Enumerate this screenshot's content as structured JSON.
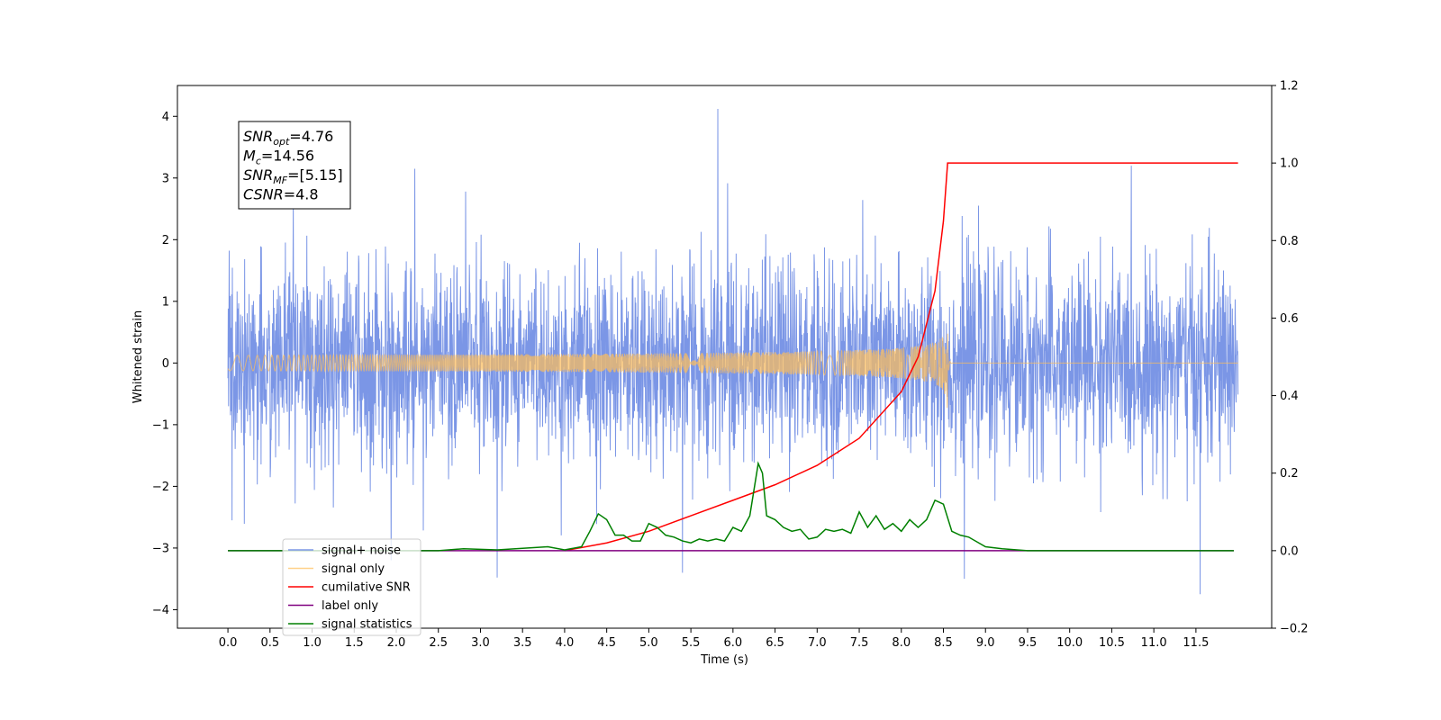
{
  "chart_data": {
    "type": "line",
    "xlabel": "Time (s)",
    "ylabel": "Whitened strain",
    "xlim": [
      -0.6,
      12.4
    ],
    "ylim": [
      -4.3,
      4.5
    ],
    "ylim_right": [
      -0.2,
      1.2
    ],
    "x_ticks": [
      "0.0",
      "0.5",
      "1.0",
      "1.5",
      "2.0",
      "2.5",
      "3.0",
      "3.5",
      "4.0",
      "4.5",
      "5.0",
      "5.5",
      "6.0",
      "6.5",
      "7.0",
      "7.5",
      "8.0",
      "8.5",
      "9.0",
      "9.5",
      "10.0",
      "10.5",
      "11.0",
      "11.5"
    ],
    "y_ticks_left": [
      "−4",
      "−3",
      "−2",
      "−1",
      "0",
      "1",
      "2",
      "3",
      "4"
    ],
    "y_ticks_right": [
      "−0.2",
      "0.0",
      "0.2",
      "0.4",
      "0.6",
      "0.8",
      "1.0",
      "1.2"
    ],
    "grid": false,
    "legend_position": "lower-left",
    "annotation": {
      "lines": [
        {
          "var": "SNR",
          "sub": "opt",
          "value": "=4.76"
        },
        {
          "var": "M",
          "sub": "c",
          "value": "=14.56"
        },
        {
          "var": "SNR",
          "sub": "MF",
          "value": "=[5.15]"
        },
        {
          "var": "CSNR",
          "sub": "",
          "value": "=4.8"
        }
      ]
    },
    "series": [
      {
        "name": "signal+ noise",
        "axis": "left",
        "color": "#7b96e6",
        "style": "noise",
        "x_range": [
          0.0,
          12.0
        ],
        "amplitude_std": 0.8,
        "notable_peaks": [
          [
            5.82,
            4.12
          ],
          [
            11.55,
            -3.75
          ],
          [
            3.2,
            -3.48
          ],
          [
            8.75,
            -3.5
          ],
          [
            5.4,
            -3.4
          ],
          [
            0.05,
            -2.55
          ],
          [
            2.22,
            3.15
          ]
        ]
      },
      {
        "name": "signal only",
        "axis": "left",
        "color": "#ffbd58",
        "style": "chirp",
        "x_range": [
          0.0,
          12.0
        ],
        "merger_time": 8.55,
        "peak_amplitude": 0.95
      },
      {
        "name": "cumilative SNR",
        "axis": "right",
        "color": "#ff0000",
        "x": [
          4.0,
          4.5,
          5.0,
          5.5,
          6.0,
          6.5,
          7.0,
          7.5,
          8.0,
          8.2,
          8.4,
          8.5,
          8.55,
          12.0
        ],
        "values": [
          0.0,
          0.02,
          0.05,
          0.09,
          0.13,
          0.17,
          0.22,
          0.29,
          0.41,
          0.5,
          0.67,
          0.85,
          1.0,
          1.0
        ]
      },
      {
        "name": "label only",
        "axis": "right",
        "color": "#800080",
        "x": [
          0.0,
          11.95
        ],
        "values": [
          0.0,
          0.0
        ]
      },
      {
        "name": "signal statistics",
        "axis": "right",
        "color": "#008000",
        "x": [
          0.0,
          2.5,
          2.8,
          3.2,
          3.8,
          4.0,
          4.2,
          4.3,
          4.4,
          4.5,
          4.6,
          4.7,
          4.8,
          4.9,
          5.0,
          5.1,
          5.2,
          5.3,
          5.4,
          5.5,
          5.6,
          5.7,
          5.8,
          5.9,
          6.0,
          6.1,
          6.2,
          6.3,
          6.35,
          6.4,
          6.5,
          6.6,
          6.7,
          6.8,
          6.9,
          7.0,
          7.1,
          7.2,
          7.3,
          7.4,
          7.5,
          7.6,
          7.7,
          7.8,
          7.9,
          8.0,
          8.1,
          8.2,
          8.3,
          8.4,
          8.5,
          8.6,
          8.7,
          8.8,
          9.0,
          9.2,
          9.5,
          11.95
        ],
        "values": [
          0.0,
          0.0,
          0.005,
          0.002,
          0.01,
          0.002,
          0.01,
          0.05,
          0.095,
          0.08,
          0.04,
          0.04,
          0.025,
          0.025,
          0.07,
          0.06,
          0.04,
          0.035,
          0.025,
          0.02,
          0.03,
          0.025,
          0.03,
          0.025,
          0.06,
          0.05,
          0.09,
          0.225,
          0.2,
          0.09,
          0.08,
          0.06,
          0.05,
          0.055,
          0.03,
          0.035,
          0.055,
          0.05,
          0.055,
          0.045,
          0.1,
          0.06,
          0.09,
          0.055,
          0.07,
          0.05,
          0.08,
          0.06,
          0.08,
          0.13,
          0.12,
          0.05,
          0.04,
          0.035,
          0.01,
          0.005,
          0.0,
          0.0
        ]
      }
    ]
  }
}
